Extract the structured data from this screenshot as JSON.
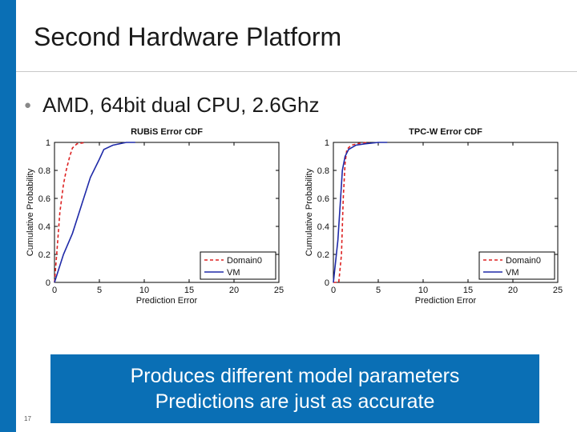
{
  "slide": {
    "title": "Second Hardware Platform",
    "bullet": "AMD, 64bit dual CPU, 2.6Ghz",
    "callout_line1": "Produces different model parameters",
    "callout_line2": "Predictions are just as accurate",
    "page_number": "17",
    "accent_color": "#0a6fb5"
  },
  "chart_data": [
    {
      "type": "line",
      "title": "RUBiS Error CDF",
      "xlabel": "Prediction Error",
      "ylabel": "Cumulative Probability",
      "xlim": [
        0,
        25
      ],
      "ylim": [
        0,
        1
      ],
      "xticks": [
        0,
        5,
        10,
        15,
        20,
        25
      ],
      "yticks": [
        0,
        0.2,
        0.4,
        0.6,
        0.8,
        1
      ],
      "grid": false,
      "legend_position": "bottom-right",
      "series": [
        {
          "name": "Domain0",
          "color": "#dd2222",
          "dash": "dashed",
          "x": [
            0,
            0.3,
            0.6,
            1.0,
            1.3,
            1.7,
            2.0,
            2.5,
            3.5
          ],
          "y": [
            0,
            0.25,
            0.5,
            0.7,
            0.8,
            0.9,
            0.96,
            0.99,
            1.0
          ]
        },
        {
          "name": "VM",
          "color": "#1f2aa8",
          "dash": "solid",
          "x": [
            0,
            0.5,
            1.0,
            2.0,
            3.0,
            4.0,
            5.0,
            5.5,
            6.5,
            8.0,
            9.0
          ],
          "y": [
            0,
            0.1,
            0.2,
            0.35,
            0.55,
            0.75,
            0.88,
            0.95,
            0.98,
            1.0,
            1.0
          ]
        }
      ]
    },
    {
      "type": "line",
      "title": "TPC-W Error CDF",
      "xlabel": "Prediction Error",
      "ylabel": "Cumulative Probability",
      "xlim": [
        0,
        25
      ],
      "ylim": [
        0,
        1
      ],
      "xticks": [
        0,
        5,
        10,
        15,
        20,
        25
      ],
      "yticks": [
        0,
        0.2,
        0.4,
        0.6,
        0.8,
        1
      ],
      "grid": false,
      "legend_position": "bottom-right",
      "series": [
        {
          "name": "Domain0",
          "color": "#dd2222",
          "dash": "dashed",
          "x": [
            0,
            0.6,
            0.9,
            1.1,
            1.3,
            1.5,
            2.0,
            3.0,
            4.0
          ],
          "y": [
            0,
            0,
            0.2,
            0.6,
            0.85,
            0.95,
            0.98,
            0.995,
            1.0
          ]
        },
        {
          "name": "VM",
          "color": "#1f2aa8",
          "dash": "solid",
          "x": [
            0,
            0.5,
            0.8,
            1.0,
            1.3,
            1.7,
            2.5,
            3.5,
            5.0,
            6.0
          ],
          "y": [
            0,
            0.3,
            0.6,
            0.8,
            0.9,
            0.95,
            0.98,
            0.99,
            1.0,
            1.0
          ]
        }
      ]
    }
  ]
}
